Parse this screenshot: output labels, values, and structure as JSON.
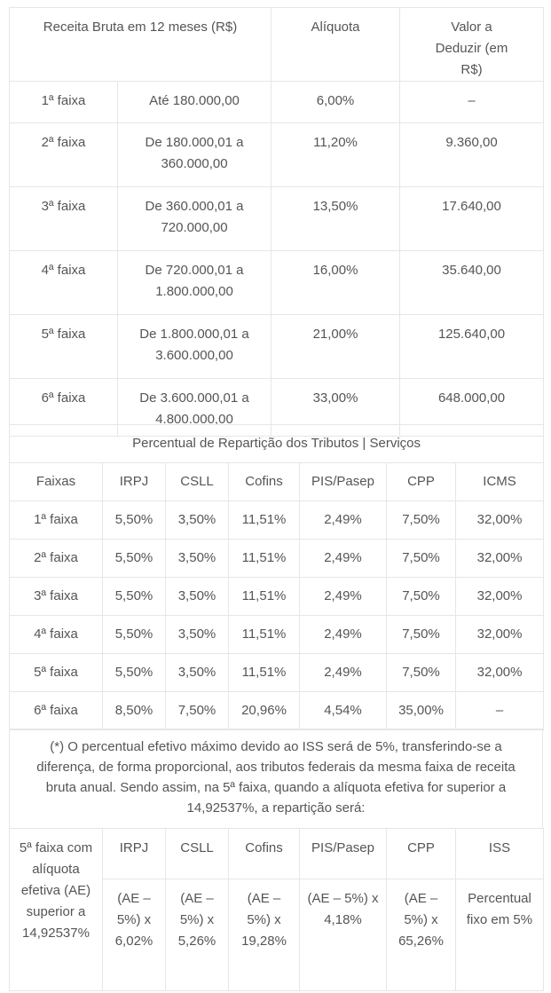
{
  "table1": {
    "headers": [
      "Receita Bruta em 12 meses (R$)",
      "Alíquota",
      "Valor a Deduzir (em R$)"
    ],
    "rows": [
      [
        "1ª faixa",
        "Até 180.000,00",
        "6,00%",
        "–"
      ],
      [
        "2ª faixa",
        "De 180.000,01 a 360.000,00",
        "11,20%",
        "9.360,00"
      ],
      [
        "3ª faixa",
        "De 360.000,01 a 720.000,00",
        "13,50%",
        "17.640,00"
      ],
      [
        "4ª faixa",
        "De 720.000,01 a 1.800.000,00",
        "16,00%",
        "35.640,00"
      ],
      [
        "5ª faixa",
        "De 1.800.000,01 a 3.600.000,00",
        "21,00%",
        "125.640,00"
      ],
      [
        "6ª faixa",
        "De 3.600.000,01 a 4.800.000,00",
        "33,00%",
        "648.000,00"
      ]
    ]
  },
  "table2": {
    "title": "Percentual de Repartição dos Tributos | Serviços",
    "headers": [
      "Faixas",
      "IRPJ",
      "CSLL",
      "Cofins",
      "PIS/Pasep",
      "CPP",
      "ICMS"
    ],
    "rows": [
      [
        "1ª faixa",
        "5,50%",
        "3,50%",
        "11,51%",
        "2,49%",
        "7,50%",
        "32,00%"
      ],
      [
        "2ª faixa",
        "5,50%",
        "3,50%",
        "11,51%",
        "2,49%",
        "7,50%",
        "32,00%"
      ],
      [
        "3ª faixa",
        "5,50%",
        "3,50%",
        "11,51%",
        "2,49%",
        "7,50%",
        "32,00%"
      ],
      [
        "4ª faixa",
        "5,50%",
        "3,50%",
        "11,51%",
        "2,49%",
        "7,50%",
        "32,00%"
      ],
      [
        "5ª faixa",
        "5,50%",
        "3,50%",
        "11,51%",
        "2,49%",
        "7,50%",
        "32,00%"
      ],
      [
        "6ª faixa",
        "8,50%",
        "7,50%",
        "20,96%",
        "4,54%",
        "35,00%",
        "–"
      ]
    ]
  },
  "note": "(*) O percentual efetivo máximo devido ao ISS será de 5%, transferindo-se a diferença, de forma proporcional, aos tributos federais da mesma faixa de receita bruta anual. Sendo assim, na 5ª faixa, quando a alíquota efetiva for superior a 14,92537%, a repartição será:",
  "table3": {
    "row_label": "5ª faixa com alíquota efetiva (AE) superior a 14,92537%",
    "headers": [
      "IRPJ",
      "CSLL",
      "Cofins",
      "PIS/Pasep",
      "CPP",
      "ISS"
    ],
    "values": [
      "(AE – 5%) x 6,02%",
      "(AE – 5%) x 5,26%",
      "(AE – 5%) x 19,28%",
      "(AE – 5%) x 4,18%",
      "(AE – 5%) x 65,26%",
      "Percentual fixo em 5%"
    ]
  }
}
